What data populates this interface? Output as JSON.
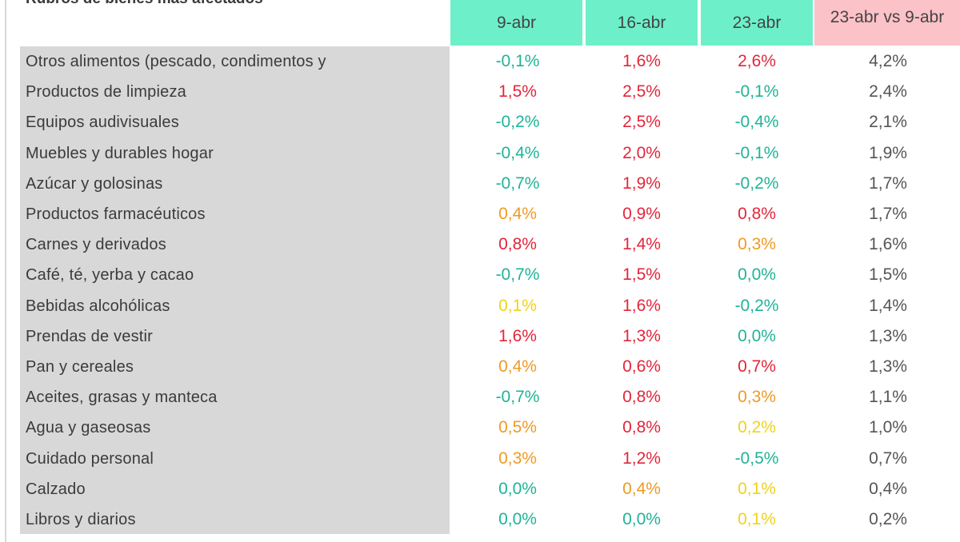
{
  "table": {
    "title": "Rubros de bienes más afectados",
    "columns": [
      "9-abr",
      "16-abr",
      "23-abr",
      "23-abr vs 9-abr"
    ],
    "header_colors": {
      "dates": "#6df0c9",
      "comparison": "#fbc2c8"
    },
    "value_colors": {
      "negative": "#20b397",
      "low": "#f0d21a",
      "mid": "#ef9a24",
      "high": "#e3253a"
    },
    "rows": [
      {
        "label": "Otros alimentos (pescado, condimentos y",
        "values": [
          "-0,1%",
          "1,6%",
          "2,6%",
          "4,2%"
        ],
        "tones": [
          "negative",
          "high",
          "high"
        ]
      },
      {
        "label": "Productos de limpieza",
        "values": [
          "1,5%",
          "2,5%",
          "-0,1%",
          "2,4%"
        ],
        "tones": [
          "high",
          "high",
          "negative"
        ]
      },
      {
        "label": "Equipos audivisuales",
        "values": [
          "-0,2%",
          "2,5%",
          "-0,4%",
          "2,1%"
        ],
        "tones": [
          "negative",
          "high",
          "negative"
        ]
      },
      {
        "label": "Muebles y durables hogar",
        "values": [
          "-0,4%",
          "2,0%",
          "-0,1%",
          "1,9%"
        ],
        "tones": [
          "negative",
          "high",
          "negative"
        ]
      },
      {
        "label": "Azúcar y golosinas",
        "values": [
          "-0,7%",
          "1,9%",
          "-0,2%",
          "1,7%"
        ],
        "tones": [
          "negative",
          "high",
          "negative"
        ]
      },
      {
        "label": "Productos farmacéuticos",
        "values": [
          "0,4%",
          "0,9%",
          "0,8%",
          "1,7%"
        ],
        "tones": [
          "mid",
          "high",
          "high"
        ]
      },
      {
        "label": "Carnes y derivados",
        "values": [
          "0,8%",
          "1,4%",
          "0,3%",
          "1,6%"
        ],
        "tones": [
          "high",
          "high",
          "mid"
        ]
      },
      {
        "label": "Café, té, yerba y cacao",
        "values": [
          "-0,7%",
          "1,5%",
          "0,0%",
          "1,5%"
        ],
        "tones": [
          "negative",
          "high",
          "negative"
        ]
      },
      {
        "label": "Bebidas alcohólicas",
        "values": [
          "0,1%",
          "1,6%",
          "-0,2%",
          "1,4%"
        ],
        "tones": [
          "low",
          "high",
          "negative"
        ]
      },
      {
        "label": "Prendas de vestir",
        "values": [
          "1,6%",
          "1,3%",
          "0,0%",
          "1,3%"
        ],
        "tones": [
          "high",
          "high",
          "negative"
        ]
      },
      {
        "label": "Pan y cereales",
        "values": [
          "0,4%",
          "0,6%",
          "0,7%",
          "1,3%"
        ],
        "tones": [
          "mid",
          "high",
          "high"
        ]
      },
      {
        "label": "Aceites, grasas y manteca",
        "values": [
          "-0,7%",
          "0,8%",
          "0,3%",
          "1,1%"
        ],
        "tones": [
          "negative",
          "high",
          "mid"
        ]
      },
      {
        "label": "Agua y gaseosas",
        "values": [
          "0,5%",
          "0,8%",
          "0,2%",
          "1,0%"
        ],
        "tones": [
          "mid",
          "high",
          "low"
        ]
      },
      {
        "label": "Cuidado personal",
        "values": [
          "0,3%",
          "1,2%",
          "-0,5%",
          "0,7%"
        ],
        "tones": [
          "mid",
          "high",
          "negative"
        ]
      },
      {
        "label": "Calzado",
        "values": [
          "0,0%",
          "0,4%",
          "0,1%",
          "0,4%"
        ],
        "tones": [
          "negative",
          "mid",
          "low"
        ]
      },
      {
        "label": "Libros y diarios",
        "values": [
          "0,0%",
          "0,0%",
          "0,1%",
          "0,2%"
        ],
        "tones": [
          "negative",
          "negative",
          "low"
        ]
      }
    ]
  }
}
